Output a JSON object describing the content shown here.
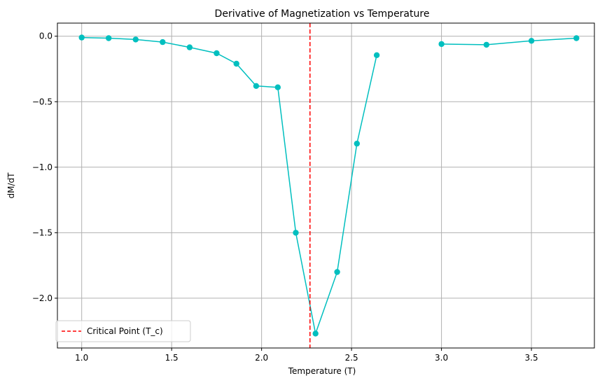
{
  "chart_data": {
    "type": "line",
    "title": "Derivative of Magnetization vs Temperature",
    "xlabel": "Temperature (T)",
    "ylabel": "dM/dT",
    "xlim": [
      0.865,
      3.85
    ],
    "ylim": [
      -2.38,
      0.1
    ],
    "grid": true,
    "legend_placement": "lower-left",
    "xticks": [
      1.0,
      1.5,
      2.0,
      2.5,
      3.0,
      3.5
    ],
    "xtick_labels": [
      "1.0",
      "1.5",
      "2.0",
      "2.5",
      "3.0",
      "3.5"
    ],
    "yticks": [
      0.0,
      -0.5,
      -1.0,
      -1.5,
      -2.0
    ],
    "ytick_labels": [
      "0.0",
      "−0.5",
      "−1.0",
      "−1.5",
      "−2.0"
    ],
    "series": [
      {
        "color": "#00bfbf",
        "marker": "circle",
        "segments": [
          [
            [
              1.0,
              -0.01
            ],
            [
              1.15,
              -0.015
            ],
            [
              1.3,
              -0.025
            ],
            [
              1.45,
              -0.045
            ],
            [
              1.6,
              -0.085
            ],
            [
              1.75,
              -0.13
            ],
            [
              1.86,
              -0.21
            ],
            [
              1.97,
              -0.38
            ],
            [
              2.09,
              -0.39
            ],
            [
              2.19,
              -1.5
            ],
            [
              2.3,
              -2.27
            ],
            [
              2.42,
              -1.8
            ],
            [
              2.53,
              -0.82
            ],
            [
              2.64,
              -0.145
            ]
          ],
          [
            [
              3.0,
              -0.06
            ],
            [
              3.25,
              -0.065
            ],
            [
              3.5,
              -0.035
            ],
            [
              3.75,
              -0.015
            ]
          ]
        ]
      }
    ],
    "reference_lines": [
      {
        "name": "Critical Point (T_c)",
        "orientation": "vertical",
        "x": 2.269,
        "color": "#ff0000",
        "style": "dashed"
      }
    ]
  }
}
